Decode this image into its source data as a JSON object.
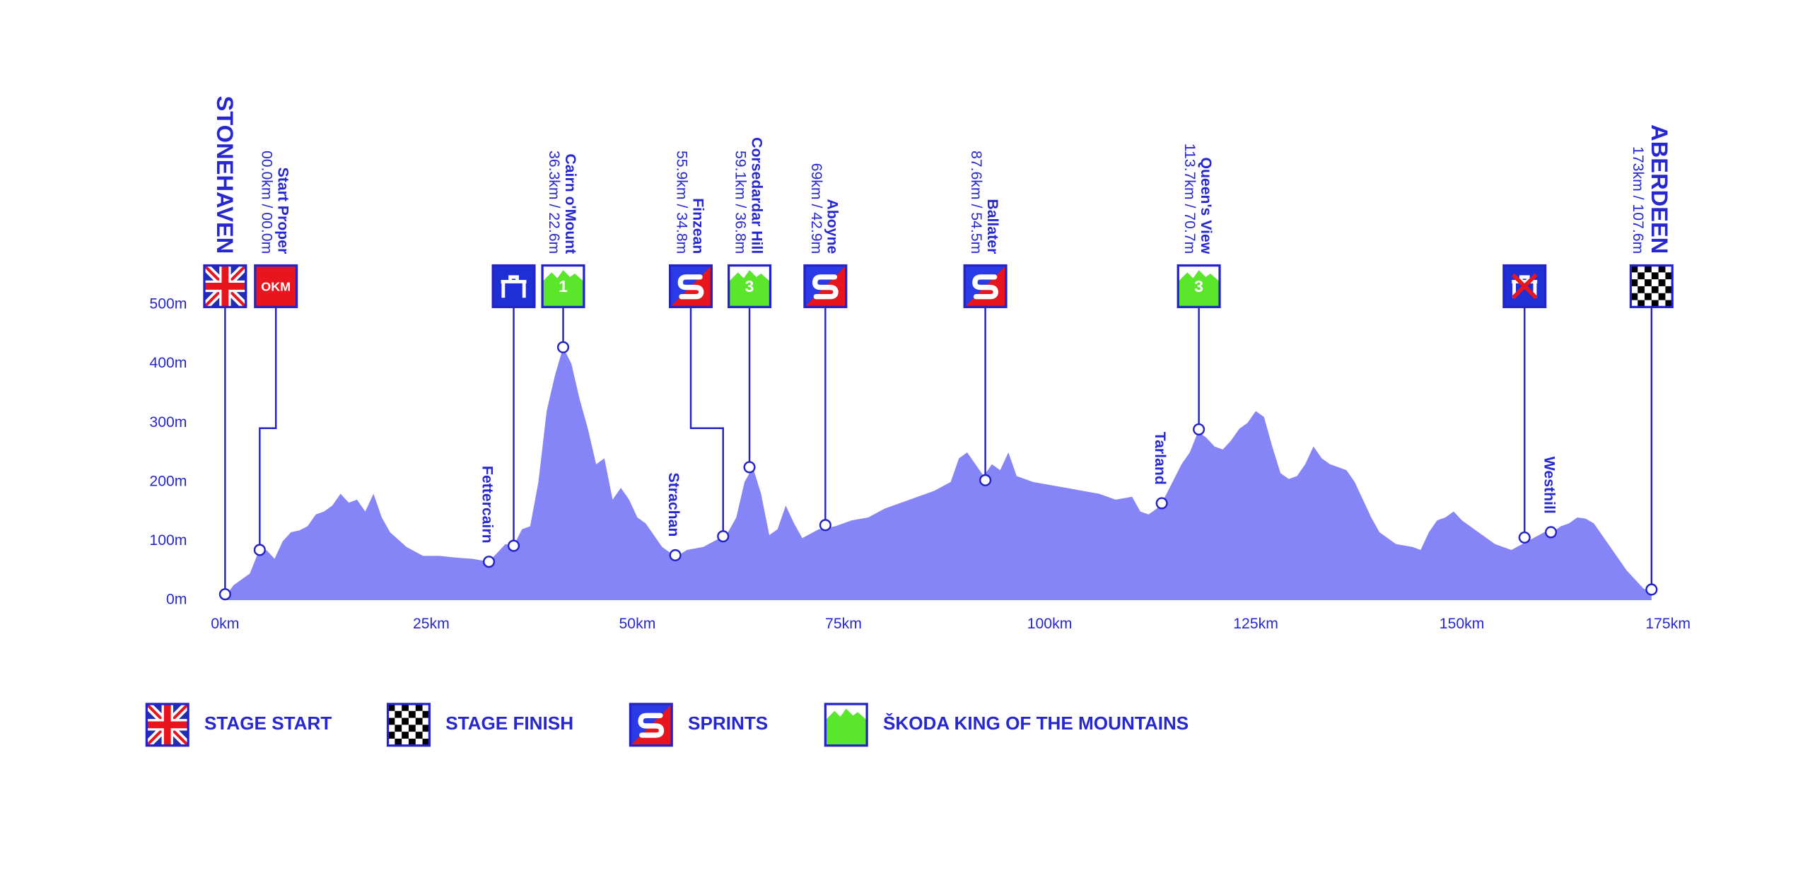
{
  "chart_data": {
    "type": "area",
    "color": "#8585f8",
    "xlim": [
      0,
      175
    ],
    "ylim": [
      0,
      500
    ],
    "xticks": [
      {
        "value": 0,
        "label": "0km"
      },
      {
        "value": 25,
        "label": "25km"
      },
      {
        "value": 50,
        "label": "50km"
      },
      {
        "value": 75,
        "label": "75km"
      },
      {
        "value": 100,
        "label": "100km"
      },
      {
        "value": 125,
        "label": "125km"
      },
      {
        "value": 150,
        "label": "150km"
      },
      {
        "value": 175,
        "label": "175km"
      }
    ],
    "yticks": [
      {
        "value": 0,
        "label": "0m"
      },
      {
        "value": 100,
        "label": "100m"
      },
      {
        "value": 200,
        "label": "200m"
      },
      {
        "value": 300,
        "label": "300m"
      },
      {
        "value": 400,
        "label": "400m"
      },
      {
        "value": 500,
        "label": "500m"
      }
    ],
    "x": [
      0,
      1,
      2,
      3,
      4,
      5,
      6,
      7,
      8,
      9,
      10,
      11,
      12,
      13,
      14,
      15,
      16,
      17,
      18,
      19,
      20,
      22,
      24,
      26,
      28,
      30,
      32,
      33,
      34,
      35,
      36,
      37,
      38,
      39,
      40,
      41,
      42,
      43,
      44,
      45,
      46,
      47,
      48,
      49,
      50,
      51,
      52,
      53,
      54,
      55,
      56,
      58,
      60,
      61,
      62,
      63,
      64,
      65,
      66,
      67,
      68,
      69,
      70,
      72,
      74,
      76,
      78,
      80,
      82,
      84,
      86,
      88,
      89,
      90,
      91,
      92,
      93,
      94,
      95,
      96,
      98,
      100,
      102,
      104,
      106,
      108,
      110,
      111,
      112,
      113,
      114,
      116,
      117,
      118,
      119,
      120,
      121,
      122,
      123,
      124,
      125,
      126,
      127,
      128,
      129,
      130,
      131,
      132,
      133,
      134,
      135,
      136,
      137,
      138,
      139,
      140,
      142,
      144,
      145,
      146,
      147,
      148,
      149,
      150,
      151,
      152,
      154,
      156,
      158,
      160,
      161,
      162,
      163,
      164,
      165,
      166,
      167,
      168,
      169,
      170,
      171,
      172,
      173
    ],
    "values": [
      5,
      25,
      35,
      45,
      80,
      85,
      70,
      100,
      115,
      118,
      125,
      145,
      150,
      160,
      180,
      165,
      170,
      150,
      180,
      140,
      115,
      90,
      75,
      75,
      72,
      70,
      65,
      80,
      95,
      92,
      120,
      125,
      200,
      320,
      380,
      428,
      400,
      340,
      290,
      230,
      240,
      170,
      190,
      170,
      140,
      130,
      110,
      90,
      80,
      76,
      85,
      90,
      105,
      115,
      140,
      200,
      225,
      180,
      110,
      120,
      160,
      130,
      105,
      120,
      125,
      135,
      140,
      155,
      165,
      175,
      185,
      200,
      240,
      250,
      230,
      210,
      230,
      220,
      250,
      210,
      200,
      195,
      190,
      185,
      180,
      170,
      175,
      150,
      145,
      155,
      175,
      230,
      250,
      285,
      275,
      260,
      255,
      270,
      290,
      300,
      320,
      310,
      260,
      215,
      205,
      210,
      230,
      260,
      240,
      230,
      225,
      220,
      200,
      170,
      140,
      115,
      95,
      90,
      85,
      115,
      135,
      140,
      150,
      135,
      125,
      115,
      95,
      85,
      100,
      115,
      115,
      125,
      130,
      140,
      138,
      130,
      110,
      90,
      70,
      50,
      35,
      20,
      12
    ],
    "markers": [
      {
        "name": "STONEHAVEN",
        "icon": "start",
        "km": 0,
        "elevation": 10
      },
      {
        "name": "Start Proper",
        "distance": "00.0km / 00.0m",
        "icon": "okm",
        "icon_text": "OKM",
        "km": 4.2,
        "elevation": 85
      },
      {
        "name": "Fettercairn",
        "km": 32,
        "elevation": 65
      },
      {
        "icon": "feed",
        "km": 35,
        "elevation": 92
      },
      {
        "name": "Cairn o'Mount",
        "distance": "36.3km / 22.6m",
        "icon": "kom",
        "icon_text": "1",
        "km": 41,
        "elevation": 428
      },
      {
        "name": "Strachan",
        "km": 54.6,
        "elevation": 76
      },
      {
        "name": "Finzean",
        "distance": "55.9km / 34.8m",
        "icon": "sprint",
        "km": 60.4,
        "elevation": 108
      },
      {
        "name": "Corsedardar Hill",
        "distance": "59.1km / 36.8m",
        "icon": "kom",
        "icon_text": "3",
        "km": 63.6,
        "elevation": 225
      },
      {
        "name": "Aboyne",
        "distance": "69km / 42.9m",
        "icon": "sprint",
        "km": 72.8,
        "elevation": 127
      },
      {
        "name": "Ballater",
        "distance": "87.6km / 54.5m",
        "icon": "sprint",
        "km": 92.2,
        "elevation": 203
      },
      {
        "name": "Tarland",
        "km": 113.6,
        "elevation": 164
      },
      {
        "name": "Queen's View",
        "distance": "113.7km / 70.7m",
        "icon": "kom",
        "icon_text": "3",
        "km": 118.1,
        "elevation": 289
      },
      {
        "icon": "feed-end",
        "km": 157.6,
        "elevation": 106
      },
      {
        "name": "Westhill",
        "km": 160.8,
        "elevation": 115
      },
      {
        "name": "ABERDEEN",
        "distance": "173km / 107.6m",
        "icon": "finish",
        "km": 173,
        "elevation": 18
      }
    ],
    "legend": [
      {
        "label": "STAGE START",
        "icon": "start"
      },
      {
        "label": "STAGE FINISH",
        "icon": "finish"
      },
      {
        "label": "SPRINTS",
        "icon": "sprint"
      },
      {
        "label": "ŠKODA KING OF THE MOUNTAINS",
        "icon": "kom"
      }
    ]
  }
}
